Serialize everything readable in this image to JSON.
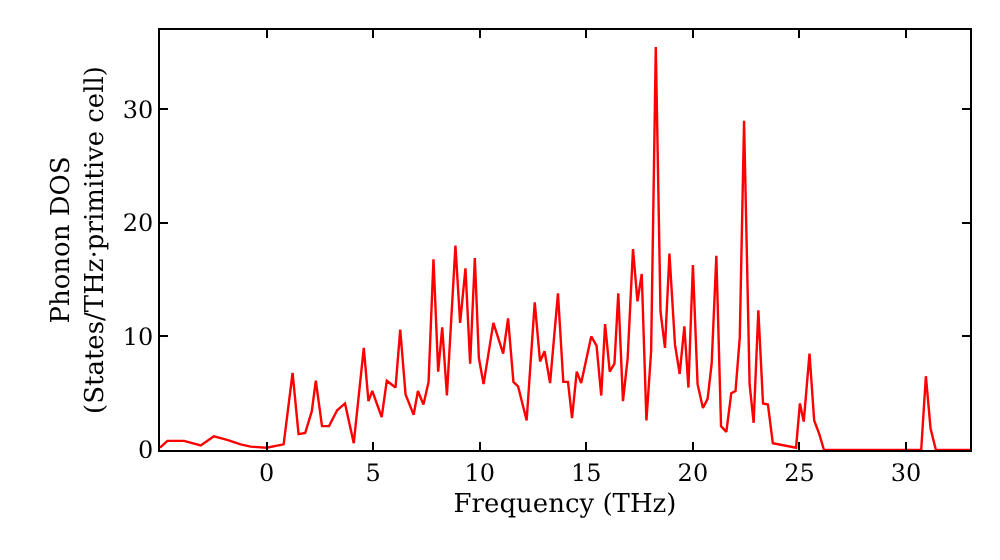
{
  "chart_data": {
    "type": "line",
    "xlabel": "Frequency (THz)",
    "ylabel": "Phonon DOS\n(States/THz·primitive cell)",
    "x": [
      -5,
      -4.65,
      -3.87,
      -3.09,
      -2.47,
      -1.85,
      -1.22,
      -0.75,
      0,
      0.8,
      1.22,
      1.5,
      1.81,
      2.12,
      2.31,
      2.6,
      2.93,
      3.31,
      3.68,
      4.09,
      4.56,
      4.78,
      4.96,
      5.4,
      5.64,
      6.05,
      6.27,
      6.52,
      6.9,
      7.1,
      7.36,
      7.6,
      7.83,
      8.05,
      8.24,
      8.46,
      8.86,
      9.08,
      9.33,
      9.55,
      9.77,
      9.96,
      10.18,
      10.64,
      11.1,
      11.33,
      11.58,
      11.8,
      12.2,
      12.58,
      12.83,
      13.04,
      13.3,
      13.67,
      13.92,
      14.14,
      14.33,
      14.55,
      14.76,
      15.23,
      15.48,
      15.7,
      15.88,
      16.1,
      16.32,
      16.5,
      16.72,
      16.94,
      17.19,
      17.4,
      17.6,
      17.82,
      18.04,
      18.26,
      18.48,
      18.69,
      18.9,
      19.16,
      19.38,
      19.6,
      19.79,
      20.0,
      20.22,
      20.47,
      20.69,
      20.88,
      21.1,
      21.32,
      21.57,
      21.8,
      22.0,
      22.2,
      22.4,
      22.66,
      22.85,
      23.07,
      23.29,
      23.52,
      23.75,
      24.84,
      25.02,
      25.2,
      25.47,
      25.69,
      25.93,
      26.15,
      30.71,
      30.93,
      31.15,
      31.4,
      33
    ],
    "series": [
      {
        "color": "#ff0000",
        "values": [
          0.2,
          0.8,
          0.8,
          0.4,
          1.2,
          0.9,
          0.5,
          0.3,
          0.2,
          0.5,
          6.8,
          1.4,
          1.5,
          3.4,
          6.1,
          2.1,
          2.1,
          3.5,
          4.1,
          0.6,
          9,
          4.3,
          5.2,
          2.9,
          6.1,
          5.5,
          10.6,
          4.9,
          3.1,
          5.2,
          4,
          6,
          16.8,
          6.9,
          10.8,
          4.8,
          18,
          11.2,
          16,
          7.6,
          16.9,
          8.1,
          5.8,
          11.2,
          8.5,
          11.6,
          6,
          5.6,
          2.6,
          13,
          7.8,
          8.7,
          5.9,
          13.8,
          6,
          6,
          2.8,
          6.9,
          5.9,
          10,
          9.2,
          4.8,
          11.1,
          6.9,
          7.6,
          13.8,
          4.3,
          8.1,
          17.7,
          13.1,
          15.5,
          2.6,
          8.7,
          35.5,
          12.2,
          9,
          17.3,
          9.3,
          6.7,
          10.9,
          5.5,
          16.3,
          5.8,
          3.7,
          4.5,
          7.6,
          17.1,
          2.1,
          1.6,
          5,
          5.2,
          9.9,
          29,
          5.8,
          2.4,
          12.3,
          4.1,
          4,
          0.6,
          0.2,
          4.1,
          2.5,
          8.5,
          2.6,
          1.4,
          0,
          0,
          6.5,
          1.9,
          0,
          0
        ]
      }
    ],
    "xlim": [
      -5,
      33
    ],
    "ylim": [
      0,
      37
    ],
    "xticks": [
      0,
      5,
      10,
      15,
      20,
      25,
      30
    ],
    "yticks": [
      0,
      10,
      20,
      30
    ],
    "marker": "none",
    "line_style": "solid"
  }
}
